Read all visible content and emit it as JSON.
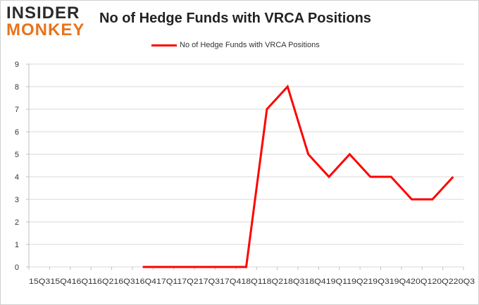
{
  "header": {
    "logo_line1": "INSIDER",
    "logo_line2": "MONKEY"
  },
  "colors": {
    "series": "#ff0000",
    "grid": "#d9d9d9",
    "logo_dark": "#2b2b2b",
    "logo_orange": "#e8731c"
  },
  "chart_data": {
    "type": "line",
    "title": "No of Hedge Funds with VRCA Positions",
    "xlabel": "",
    "ylabel": "",
    "ylim": [
      0,
      9
    ],
    "yticks": [
      "0",
      "1",
      "2",
      "3",
      "4",
      "5",
      "6",
      "7",
      "8",
      "9"
    ],
    "grid": true,
    "legend_position": "top-center",
    "x_axis_text": "15Q315Q416Q116Q216Q316Q417Q117Q217Q317Q418Q118Q218Q318Q419Q119Q219Q319Q420Q120Q220Q3",
    "categories": [
      "15Q3",
      "15Q4",
      "16Q1",
      "16Q2",
      "16Q3",
      "16Q4",
      "17Q1",
      "17Q2",
      "17Q3",
      "17Q4",
      "18Q1",
      "18Q2",
      "18Q3",
      "18Q4",
      "19Q1",
      "19Q2",
      "19Q3",
      "19Q4",
      "20Q1",
      "20Q2",
      "20Q3"
    ],
    "series": [
      {
        "name": "No of Hedge Funds with VRCA Positions",
        "color": "#ff0000",
        "values": [
          null,
          null,
          null,
          null,
          null,
          0,
          0,
          0,
          0,
          0,
          0,
          7,
          8,
          5,
          4,
          5,
          4,
          4,
          3,
          3,
          4
        ]
      }
    ]
  }
}
